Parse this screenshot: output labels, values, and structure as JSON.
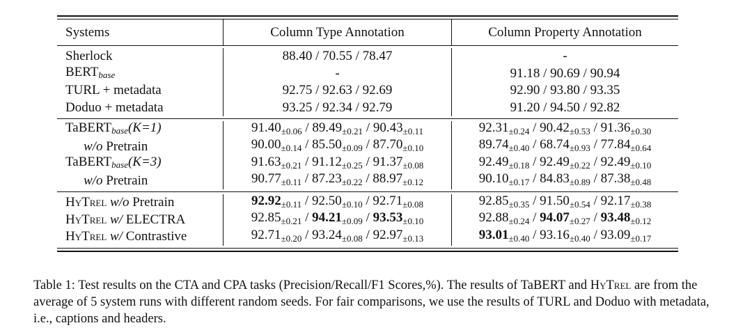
{
  "header": {
    "systems": "Systems",
    "cta": "Column Type Annotation",
    "cpa": "Column Property Annotation"
  },
  "group1": [
    {
      "name": "Sherlock",
      "cta": "88.40 / 70.55 / 78.47",
      "cpa": "-"
    },
    {
      "name": "BERT",
      "name_sub": "base",
      "cta": "-",
      "cpa": "91.18 / 90.69 / 90.94"
    },
    {
      "name": "TURL + metadata",
      "cta": "92.75 / 92.63 / 92.69",
      "cpa": "92.90 / 93.80 / 93.35"
    },
    {
      "name": "Doduo + metadata",
      "cta": "93.25 / 92.34 / 92.79",
      "cpa": "91.20 / 94.50 / 92.82"
    }
  ],
  "group2": [
    {
      "name": "TaBERT",
      "name_sub": "base",
      "name_suffix": "(K=1)",
      "cta": [
        {
          "v": "91.40",
          "s": "±0.06"
        },
        {
          "v": "89.49",
          "s": "±0.21"
        },
        {
          "v": "90.43",
          "s": "±0.11"
        }
      ],
      "cpa": [
        {
          "v": "92.31",
          "s": "±0.24"
        },
        {
          "v": "90.42",
          "s": "±0.53"
        },
        {
          "v": "91.36",
          "s": "±0.30"
        }
      ]
    },
    {
      "name_it": "w/o",
      "name": "Pretrain",
      "cta": [
        {
          "v": "90.00",
          "s": "±0.14"
        },
        {
          "v": "85.50",
          "s": "±0.09"
        },
        {
          "v": "87.70",
          "s": "±0.10"
        }
      ],
      "cpa": [
        {
          "v": "89.74",
          "s": "±0.40"
        },
        {
          "v": "68.74",
          "s": "±0.93"
        },
        {
          "v": "77.84",
          "s": "±0.64"
        }
      ]
    },
    {
      "name": "TaBERT",
      "name_sub": "base",
      "name_suffix": "(K=3)",
      "cta": [
        {
          "v": "91.63",
          "s": "±0.21"
        },
        {
          "v": "91.12",
          "s": "±0.25"
        },
        {
          "v": "91.37",
          "s": "±0.08"
        }
      ],
      "cpa": [
        {
          "v": "92.49",
          "s": "±0.18"
        },
        {
          "v": "92.49",
          "s": "±0.22"
        },
        {
          "v": "92.49",
          "s": "±0.10"
        }
      ]
    },
    {
      "name_it": "w/o",
      "name": "Pretrain",
      "cta": [
        {
          "v": "90.77",
          "s": "±0.11"
        },
        {
          "v": "87.23",
          "s": "±0.22"
        },
        {
          "v": "88.97",
          "s": "±0.12"
        }
      ],
      "cpa": [
        {
          "v": "90.10",
          "s": "±0.17"
        },
        {
          "v": "84.83",
          "s": "±0.89"
        },
        {
          "v": "87.38",
          "s": "±0.48"
        }
      ]
    }
  ],
  "group3": [
    {
      "model": "HyTrel",
      "name_it": "w/o",
      "name": "Pretrain",
      "cta": [
        {
          "v": "92.92",
          "s": "±0.11",
          "b": true
        },
        {
          "v": "92.50",
          "s": "±0.10"
        },
        {
          "v": "92.71",
          "s": "±0.08"
        }
      ],
      "cpa": [
        {
          "v": "92.85",
          "s": "±0.35"
        },
        {
          "v": "91.50",
          "s": "±0.54"
        },
        {
          "v": "92.17",
          "s": "±0.38"
        }
      ]
    },
    {
      "model": "HyTrel",
      "name_it": "w/",
      "name": "ELECTRA",
      "cta": [
        {
          "v": "92.85",
          "s": "±0.21"
        },
        {
          "v": "94.21",
          "s": "±0.09",
          "b": true
        },
        {
          "v": "93.53",
          "s": "±0.10",
          "b": true
        }
      ],
      "cpa": [
        {
          "v": "92.88",
          "s": "±0.24"
        },
        {
          "v": "94.07",
          "s": "±0.27",
          "b": true
        },
        {
          "v": "93.48",
          "s": "±0.12",
          "b": true
        }
      ]
    },
    {
      "model": "HyTrel",
      "name_it": "w/",
      "name": "Contrastive",
      "cta": [
        {
          "v": "92.71",
          "s": "±0.20"
        },
        {
          "v": "93.24",
          "s": "±0.08"
        },
        {
          "v": "92.97",
          "s": "±0.13"
        }
      ],
      "cpa": [
        {
          "v": "93.01",
          "s": "±0.40",
          "b": true
        },
        {
          "v": "93.16",
          "s": "±0.40"
        },
        {
          "v": "93.09",
          "s": "±0.17"
        }
      ]
    }
  ],
  "caption": {
    "label": "Table 1:",
    "text_1": " Test results on the CTA and CPA tasks (Precision/Recall/F1 Scores,%). The results of TaBERT and ",
    "model": "HyTrel",
    "text_2": " are from the average of 5 system runs with different random seeds. For fair comparisons, we use the results of TURL and Doduo with metadata, i.e., captions and headers."
  }
}
